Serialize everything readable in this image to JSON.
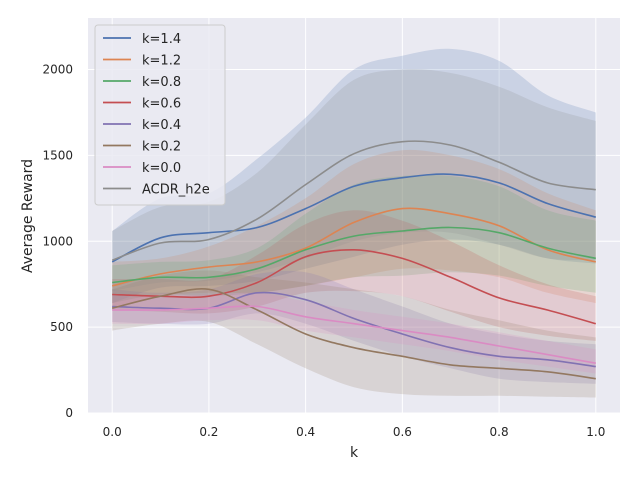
{
  "chart_data": {
    "type": "line",
    "title": "",
    "xlabel": "k",
    "ylabel": "Average Reward",
    "xlim": [
      -0.05,
      1.05
    ],
    "ylim": [
      0,
      2300
    ],
    "xticks": [
      0.0,
      0.2,
      0.4,
      0.6,
      0.8,
      1.0
    ],
    "xtick_labels": [
      "0.0",
      "0.2",
      "0.4",
      "0.6",
      "0.8",
      "1.0"
    ],
    "yticks": [
      0,
      500,
      1000,
      1500,
      2000
    ],
    "ytick_labels": [
      "0",
      "500",
      "1000",
      "1500",
      "2000"
    ],
    "grid": true,
    "legend_position": "top-left",
    "x": [
      0.0,
      0.1,
      0.2,
      0.3,
      0.4,
      0.5,
      0.6,
      0.7,
      0.8,
      0.9,
      1.0
    ],
    "series": [
      {
        "name": "k=1.4",
        "color": "#4c72b0",
        "values": [
          880,
          1020,
          1050,
          1080,
          1190,
          1320,
          1370,
          1390,
          1340,
          1220,
          1140
        ],
        "lower": [
          640,
          730,
          740,
          770,
          840,
          910,
          980,
          1010,
          980,
          900,
          870
        ],
        "upper": [
          1060,
          1250,
          1280,
          1480,
          1720,
          2000,
          2080,
          2120,
          2050,
          1850,
          1750
        ]
      },
      {
        "name": "k=1.2",
        "color": "#dd8452",
        "values": [
          740,
          810,
          850,
          880,
          960,
          1110,
          1190,
          1160,
          1090,
          950,
          880
        ],
        "lower": [
          610,
          680,
          700,
          700,
          740,
          790,
          840,
          830,
          790,
          700,
          640
        ],
        "upper": [
          880,
          900,
          970,
          1090,
          1250,
          1450,
          1530,
          1500,
          1420,
          1280,
          1180
        ]
      },
      {
        "name": "k=0.8",
        "color": "#55a868",
        "values": [
          760,
          790,
          790,
          840,
          950,
          1030,
          1060,
          1080,
          1050,
          960,
          900
        ],
        "lower": [
          640,
          690,
          680,
          700,
          740,
          790,
          800,
          820,
          800,
          740,
          700
        ],
        "upper": [
          860,
          880,
          890,
          960,
          1160,
          1330,
          1380,
          1380,
          1320,
          1180,
          1120
        ]
      },
      {
        "name": "k=0.6",
        "color": "#c44e52",
        "values": [
          690,
          680,
          680,
          760,
          910,
          950,
          900,
          790,
          670,
          600,
          520
        ],
        "lower": [
          600,
          590,
          580,
          620,
          700,
          710,
          680,
          590,
          500,
          450,
          420
        ],
        "upper": [
          780,
          780,
          780,
          920,
          1100,
          1180,
          1120,
          1000,
          860,
          750,
          680
        ]
      },
      {
        "name": "k=0.4",
        "color": "#8172b2",
        "values": [
          620,
          610,
          610,
          700,
          660,
          550,
          460,
          380,
          330,
          310,
          270
        ],
        "lower": [
          530,
          520,
          520,
          580,
          520,
          420,
          330,
          260,
          200,
          180,
          170
        ],
        "upper": [
          720,
          700,
          720,
          810,
          820,
          720,
          620,
          520,
          460,
          420,
          400
        ]
      },
      {
        "name": "k=0.2",
        "color": "#937860",
        "values": [
          610,
          680,
          720,
          600,
          460,
          380,
          330,
          280,
          260,
          240,
          200
        ],
        "lower": [
          480,
          520,
          530,
          400,
          260,
          150,
          110,
          100,
          100,
          95,
          90
        ],
        "upper": [
          720,
          800,
          830,
          790,
          760,
          720,
          680,
          600,
          540,
          480,
          440
        ]
      },
      {
        "name": "k=0.0",
        "color": "#da8bc3",
        "values": [
          600,
          600,
          610,
          620,
          560,
          520,
          480,
          440,
          390,
          340,
          290
        ],
        "lower": [
          520,
          520,
          540,
          540,
          480,
          440,
          400,
          360,
          310,
          270,
          230
        ],
        "upper": [
          690,
          680,
          690,
          700,
          650,
          600,
          560,
          520,
          470,
          420,
          370
        ]
      },
      {
        "name": "ACDR_h2e",
        "color": "#8c8c8c",
        "values": [
          890,
          990,
          1010,
          1130,
          1330,
          1510,
          1580,
          1560,
          1460,
          1340,
          1300
        ],
        "lower": [
          710,
          760,
          770,
          820,
          900,
          1000,
          1050,
          1050,
          980,
          900,
          890
        ],
        "upper": [
          1060,
          1200,
          1230,
          1400,
          1680,
          1940,
          2000,
          1980,
          1900,
          1780,
          1700
        ]
      }
    ]
  }
}
